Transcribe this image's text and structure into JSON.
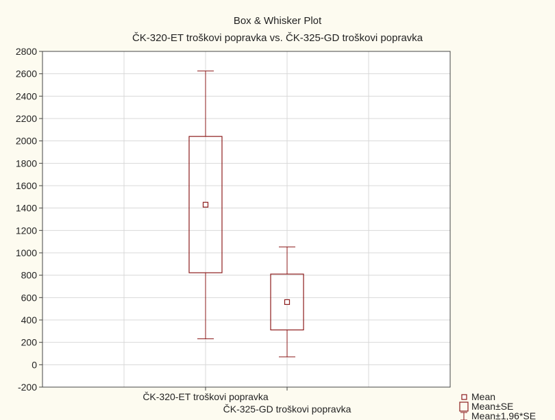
{
  "chart_data": {
    "type": "box",
    "title": "Box & Whisker Plot",
    "subtitle": "ČK-320-ET troškovi popravka vs. ČK-325-GD troškovi popravka",
    "xlabel": "",
    "ylabel": "",
    "ylim": [
      -200,
      2800
    ],
    "yticks": [
      -200,
      0,
      200,
      400,
      600,
      800,
      1000,
      1200,
      1400,
      1600,
      1800,
      2000,
      2200,
      2400,
      2600,
      2800
    ],
    "grid": true,
    "categories": [
      "ČK-320-ET troškovi popravka",
      "ČK-325-GD troškovi popravka"
    ],
    "boxes": [
      {
        "category": "ČK-320-ET troškovi popravka",
        "mean": 1430,
        "box_low": 822,
        "box_high": 2040,
        "whisker_low": 232,
        "whisker_high": 2625
      },
      {
        "category": "ČK-325-GD troškovi popravka",
        "mean": 560,
        "box_low": 311,
        "box_high": 810,
        "whisker_low": 70,
        "whisker_high": 1053
      }
    ],
    "legend": {
      "position": "bottom-right",
      "items": [
        {
          "symbol": "small-square",
          "label": "Mean"
        },
        {
          "symbol": "box",
          "label": "Mean±SE"
        },
        {
          "symbol": "whisker",
          "label": "Mean±1,96*SE"
        }
      ]
    },
    "colors": {
      "series": "#8b1a1a",
      "background": "#fdfbf0",
      "plot": "#ffffff",
      "grid": "#d8d8d8"
    }
  }
}
